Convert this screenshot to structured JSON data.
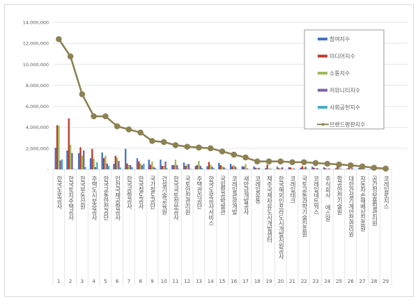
{
  "chart_data": {
    "type": "bar+line",
    "title": "",
    "xlabel": "",
    "ylabel": "",
    "ylim": [
      0,
      14000000
    ],
    "yticks": [
      "-",
      "2,000,000",
      "4,000,000",
      "6,000,000",
      "8,000,000",
      "10,000,000",
      "12,000,000",
      "14,000,000"
    ],
    "grid": true,
    "legend_position": "top-right",
    "categories": [
      "한국도로공사",
      "한국토지주택공사",
      "한국부동산원",
      "주택도시보증공사",
      "한국교통안전공단",
      "인천국제공항공사",
      "한국공항공사",
      "한국철도공사",
      "국가철도공단",
      "건설기술교육원",
      "한국국토정보공사",
      "국토안전관리원",
      "주택관리공단",
      "한국도로공사서비스",
      "국립항공박물관",
      "코레일관광개발",
      "새만금개발공사",
      "코레일유통",
      "제주국제자유도시개발센터",
      "한국해외인프라도시개발지원공사",
      "코레일테크",
      "국토교통과학기술진흥원",
      "코레일네트웍스",
      "주식회사 에스알",
      "항공안전기술원",
      "대한건설기계안전관리원",
      "자동차손해배상진흥원",
      "공간정보품질관리원",
      "코레일로지스"
    ],
    "ranks": [
      "1",
      "2",
      "3",
      "4",
      "5",
      "6",
      "7",
      "8",
      "9",
      "10",
      "11",
      "12",
      "13",
      "14",
      "15",
      "16",
      "17",
      "18",
      "19",
      "20",
      "21",
      "22",
      "23",
      "24",
      "25",
      "26",
      "27",
      "28",
      "29"
    ],
    "series": [
      {
        "name": "참여지수",
        "type": "bar",
        "color": "#4472c4",
        "values": [
          2050000,
          1800000,
          1550000,
          1050000,
          1600000,
          520000,
          1950000,
          1050000,
          920000,
          920000,
          400000,
          650000,
          330000,
          300000,
          620000,
          520000,
          300000,
          280000,
          120000,
          250000,
          200000,
          150000,
          250000,
          200000,
          100000,
          80000,
          150000,
          60000,
          40000
        ]
      },
      {
        "name": "미디어지수",
        "type": "bar",
        "color": "#c0392b",
        "values": [
          4200000,
          4850000,
          2100000,
          1950000,
          1080000,
          1300000,
          550000,
          750000,
          450000,
          330000,
          400000,
          330000,
          400000,
          700000,
          400000,
          300000,
          250000,
          150000,
          450000,
          100000,
          180000,
          300000,
          150000,
          100000,
          250000,
          180000,
          100000,
          100000,
          80000
        ]
      },
      {
        "name": "소통지수",
        "type": "bar",
        "color": "#9bbb59",
        "values": [
          4150000,
          2350000,
          1300000,
          1000000,
          1300000,
          1100000,
          400000,
          550000,
          750000,
          330000,
          920000,
          500000,
          800000,
          450000,
          300000,
          400000,
          500000,
          100000,
          80000,
          80000,
          60000,
          150000,
          60000,
          50000,
          300000,
          50000,
          40000,
          50000,
          30000
        ]
      },
      {
        "name": "커뮤니티지수",
        "type": "bar",
        "color": "#7b5ea7",
        "values": [
          850000,
          1550000,
          1800000,
          220000,
          550000,
          800000,
          400000,
          400000,
          220000,
          750000,
          400000,
          500000,
          330000,
          250000,
          200000,
          250000,
          80000,
          150000,
          60000,
          200000,
          80000,
          250000,
          120000,
          80000,
          50000,
          100000,
          60000,
          40000,
          30000
        ]
      },
      {
        "name": "사회공헌지수",
        "type": "bar",
        "color": "#4bacc6",
        "values": [
          950000,
          50000,
          220000,
          680000,
          350000,
          180000,
          200000,
          550000,
          120000,
          100000,
          50000,
          50000,
          120000,
          100000,
          80000,
          40000,
          30000,
          30000,
          20000,
          30000,
          20000,
          30000,
          20000,
          20000,
          20000,
          20000,
          20000,
          20000,
          10000
        ]
      },
      {
        "name": "브랜드평판지수",
        "type": "line",
        "color": "#8c8152",
        "values": [
          12400000,
          10750000,
          7150000,
          5050000,
          5050000,
          4100000,
          3800000,
          3500000,
          2700000,
          2600000,
          2300000,
          2150000,
          2080000,
          2000000,
          1700000,
          1400000,
          1130000,
          750000,
          750000,
          750000,
          680000,
          680000,
          600000,
          530000,
          460000,
          380000,
          280000,
          150000,
          70000
        ]
      }
    ]
  }
}
